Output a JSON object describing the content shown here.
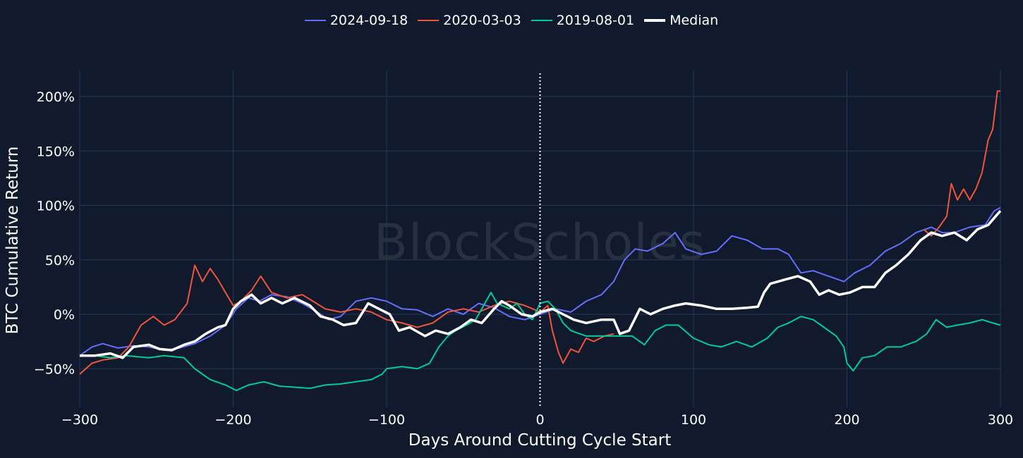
{
  "colors": {
    "background": "#101a2c",
    "grid": "#26365a",
    "text": "#ffffff",
    "cycle_line": "#ffffff"
  },
  "watermark": "BlockScholes",
  "chart_data": {
    "type": "line",
    "xlabel": "Days Around Cutting Cycle Start",
    "ylabel": "BTC Cumulative Return",
    "xlim": [
      -300,
      300
    ],
    "ylim": [
      -0.8,
      2.2
    ],
    "x_ticks": [
      -300,
      -200,
      -100,
      0,
      100,
      200,
      300
    ],
    "x_tick_labels": [
      "−300",
      "−200",
      "−100",
      "0",
      "100",
      "200",
      "300"
    ],
    "y_ticks": [
      -0.5,
      0,
      0.5,
      1,
      1.5,
      2
    ],
    "y_tick_labels": [
      "−50%",
      "0%",
      "50%",
      "100%",
      "150%",
      "200%"
    ],
    "grid": true,
    "legend_position": "top-center",
    "vertical_marker_x": 0,
    "series": [
      {
        "name": "2024-09-18",
        "color": "#636efa",
        "width": 2,
        "points": [
          [
            -300,
            -0.38
          ],
          [
            -292,
            -0.3
          ],
          [
            -285,
            -0.27
          ],
          [
            -275,
            -0.31
          ],
          [
            -265,
            -0.29
          ],
          [
            -255,
            -0.3
          ],
          [
            -245,
            -0.33
          ],
          [
            -235,
            -0.31
          ],
          [
            -225,
            -0.27
          ],
          [
            -215,
            -0.2
          ],
          [
            -205,
            -0.1
          ],
          [
            -198,
            0.05
          ],
          [
            -190,
            0.15
          ],
          [
            -183,
            0.12
          ],
          [
            -175,
            0.18
          ],
          [
            -165,
            0.16
          ],
          [
            -155,
            0.1
          ],
          [
            -145,
            0.02
          ],
          [
            -138,
            -0.05
          ],
          [
            -130,
            -0.02
          ],
          [
            -120,
            0.12
          ],
          [
            -110,
            0.15
          ],
          [
            -100,
            0.12
          ],
          [
            -90,
            0.05
          ],
          [
            -80,
            0.04
          ],
          [
            -70,
            -0.02
          ],
          [
            -60,
            0.05
          ],
          [
            -50,
            0.0
          ],
          [
            -40,
            0.1
          ],
          [
            -30,
            0.06
          ],
          [
            -20,
            -0.02
          ],
          [
            -10,
            -0.05
          ],
          [
            0,
            0.0
          ],
          [
            10,
            0.05
          ],
          [
            20,
            0.02
          ],
          [
            30,
            0.12
          ],
          [
            40,
            0.18
          ],
          [
            48,
            0.3
          ],
          [
            55,
            0.5
          ],
          [
            62,
            0.6
          ],
          [
            70,
            0.58
          ],
          [
            80,
            0.65
          ],
          [
            88,
            0.75
          ],
          [
            95,
            0.6
          ],
          [
            105,
            0.55
          ],
          [
            115,
            0.58
          ],
          [
            125,
            0.72
          ],
          [
            135,
            0.68
          ],
          [
            145,
            0.6
          ],
          [
            155,
            0.6
          ],
          [
            162,
            0.55
          ],
          [
            170,
            0.38
          ],
          [
            178,
            0.4
          ],
          [
            188,
            0.35
          ],
          [
            198,
            0.3
          ],
          [
            205,
            0.38
          ],
          [
            215,
            0.45
          ],
          [
            225,
            0.58
          ],
          [
            235,
            0.65
          ],
          [
            245,
            0.75
          ],
          [
            255,
            0.8
          ],
          [
            262,
            0.75
          ],
          [
            270,
            0.75
          ],
          [
            280,
            0.8
          ],
          [
            290,
            0.82
          ],
          [
            296,
            0.95
          ],
          [
            300,
            0.98
          ]
        ]
      },
      {
        "name": "2020-03-03",
        "color": "#ef553b",
        "width": 2,
        "points": [
          [
            -300,
            -0.55
          ],
          [
            -292,
            -0.45
          ],
          [
            -285,
            -0.42
          ],
          [
            -275,
            -0.4
          ],
          [
            -268,
            -0.3
          ],
          [
            -260,
            -0.1
          ],
          [
            -252,
            -0.02
          ],
          [
            -245,
            -0.1
          ],
          [
            -238,
            -0.05
          ],
          [
            -230,
            0.1
          ],
          [
            -225,
            0.45
          ],
          [
            -220,
            0.3
          ],
          [
            -215,
            0.42
          ],
          [
            -210,
            0.32
          ],
          [
            -205,
            0.2
          ],
          [
            -200,
            0.08
          ],
          [
            -195,
            0.12
          ],
          [
            -188,
            0.22
          ],
          [
            -182,
            0.35
          ],
          [
            -175,
            0.2
          ],
          [
            -165,
            0.15
          ],
          [
            -155,
            0.18
          ],
          [
            -148,
            0.12
          ],
          [
            -140,
            0.05
          ],
          [
            -130,
            0.02
          ],
          [
            -120,
            0.05
          ],
          [
            -110,
            0.02
          ],
          [
            -100,
            -0.05
          ],
          [
            -90,
            -0.08
          ],
          [
            -80,
            -0.12
          ],
          [
            -70,
            -0.08
          ],
          [
            -60,
            0.02
          ],
          [
            -50,
            0.05
          ],
          [
            -40,
            0.02
          ],
          [
            -30,
            0.08
          ],
          [
            -20,
            0.12
          ],
          [
            -10,
            0.08
          ],
          [
            0,
            0.02
          ],
          [
            5,
            0.08
          ],
          [
            8,
            -0.15
          ],
          [
            12,
            -0.35
          ],
          [
            15,
            -0.45
          ],
          [
            20,
            -0.32
          ],
          [
            25,
            -0.35
          ],
          [
            30,
            -0.22
          ],
          [
            35,
            -0.25
          ],
          [
            42,
            -0.2
          ],
          [
            48,
            -0.18
          ]
        ],
        "points_late": [
          [
            250,
            0.78
          ],
          [
            255,
            0.72
          ],
          [
            260,
            0.8
          ],
          [
            265,
            0.9
          ],
          [
            268,
            1.2
          ],
          [
            272,
            1.05
          ],
          [
            276,
            1.15
          ],
          [
            280,
            1.05
          ],
          [
            284,
            1.15
          ],
          [
            288,
            1.3
          ],
          [
            292,
            1.6
          ],
          [
            295,
            1.7
          ],
          [
            298,
            2.05
          ],
          [
            300,
            2.05
          ]
        ]
      },
      {
        "name": "2019-08-01",
        "color": "#00cc96",
        "width": 2,
        "points": [
          [
            -300,
            -0.38
          ],
          [
            -290,
            -0.38
          ],
          [
            -280,
            -0.4
          ],
          [
            -270,
            -0.38
          ],
          [
            -255,
            -0.4
          ],
          [
            -245,
            -0.38
          ],
          [
            -232,
            -0.4
          ],
          [
            -225,
            -0.5
          ],
          [
            -215,
            -0.6
          ],
          [
            -205,
            -0.65
          ],
          [
            -198,
            -0.7
          ],
          [
            -190,
            -0.65
          ],
          [
            -180,
            -0.62
          ],
          [
            -170,
            -0.66
          ],
          [
            -160,
            -0.67
          ],
          [
            -150,
            -0.68
          ],
          [
            -140,
            -0.65
          ],
          [
            -130,
            -0.64
          ],
          [
            -120,
            -0.62
          ],
          [
            -110,
            -0.6
          ],
          [
            -103,
            -0.55
          ],
          [
            -100,
            -0.5
          ],
          [
            -90,
            -0.48
          ],
          [
            -80,
            -0.5
          ],
          [
            -72,
            -0.45
          ],
          [
            -66,
            -0.3
          ],
          [
            -60,
            -0.2
          ],
          [
            -55,
            -0.15
          ],
          [
            -48,
            -0.1
          ],
          [
            -42,
            -0.05
          ],
          [
            -38,
            0.05
          ],
          [
            -32,
            0.2
          ],
          [
            -28,
            0.1
          ],
          [
            -20,
            0.05
          ],
          [
            -15,
            0.1
          ],
          [
            -10,
            0.0
          ],
          [
            -5,
            -0.05
          ],
          [
            0,
            0.1
          ],
          [
            5,
            0.12
          ],
          [
            10,
            0.05
          ],
          [
            15,
            -0.08
          ],
          [
            20,
            -0.15
          ],
          [
            30,
            -0.2
          ],
          [
            40,
            -0.2
          ],
          [
            50,
            -0.2
          ],
          [
            60,
            -0.2
          ],
          [
            68,
            -0.28
          ],
          [
            75,
            -0.15
          ],
          [
            82,
            -0.1
          ],
          [
            90,
            -0.1
          ],
          [
            100,
            -0.22
          ],
          [
            110,
            -0.28
          ],
          [
            118,
            -0.3
          ],
          [
            128,
            -0.25
          ],
          [
            138,
            -0.3
          ],
          [
            148,
            -0.22
          ],
          [
            155,
            -0.12
          ],
          [
            162,
            -0.08
          ],
          [
            170,
            -0.02
          ],
          [
            178,
            -0.05
          ],
          [
            185,
            -0.12
          ],
          [
            193,
            -0.2
          ],
          [
            198,
            -0.3
          ],
          [
            200,
            -0.45
          ],
          [
            204,
            -0.52
          ],
          [
            210,
            -0.4
          ],
          [
            218,
            -0.38
          ],
          [
            226,
            -0.3
          ],
          [
            235,
            -0.3
          ],
          [
            245,
            -0.25
          ],
          [
            252,
            -0.18
          ],
          [
            258,
            -0.05
          ],
          [
            265,
            -0.12
          ],
          [
            272,
            -0.1
          ],
          [
            280,
            -0.08
          ],
          [
            288,
            -0.05
          ],
          [
            295,
            -0.08
          ],
          [
            300,
            -0.1
          ]
        ]
      },
      {
        "name": "Median",
        "color": "#ffffff",
        "width": 3.5,
        "points": [
          [
            -300,
            -0.38
          ],
          [
            -290,
            -0.38
          ],
          [
            -280,
            -0.36
          ],
          [
            -272,
            -0.4
          ],
          [
            -265,
            -0.3
          ],
          [
            -255,
            -0.28
          ],
          [
            -248,
            -0.32
          ],
          [
            -240,
            -0.33
          ],
          [
            -232,
            -0.28
          ],
          [
            -225,
            -0.25
          ],
          [
            -218,
            -0.18
          ],
          [
            -210,
            -0.12
          ],
          [
            -205,
            -0.1
          ],
          [
            -200,
            0.05
          ],
          [
            -195,
            0.12
          ],
          [
            -188,
            0.18
          ],
          [
            -182,
            0.1
          ],
          [
            -175,
            0.15
          ],
          [
            -168,
            0.1
          ],
          [
            -160,
            0.15
          ],
          [
            -150,
            0.08
          ],
          [
            -143,
            -0.02
          ],
          [
            -135,
            -0.05
          ],
          [
            -128,
            -0.1
          ],
          [
            -120,
            -0.08
          ],
          [
            -112,
            0.1
          ],
          [
            -105,
            0.05
          ],
          [
            -98,
            0.0
          ],
          [
            -92,
            -0.15
          ],
          [
            -85,
            -0.12
          ],
          [
            -75,
            -0.2
          ],
          [
            -68,
            -0.15
          ],
          [
            -60,
            -0.18
          ],
          [
            -52,
            -0.12
          ],
          [
            -45,
            -0.05
          ],
          [
            -38,
            -0.08
          ],
          [
            -30,
            0.05
          ],
          [
            -25,
            0.12
          ],
          [
            -20,
            0.08
          ],
          [
            -12,
            0.0
          ],
          [
            -5,
            -0.02
          ],
          [
            0,
            0.02
          ],
          [
            8,
            0.05
          ],
          [
            15,
            0.0
          ],
          [
            22,
            -0.05
          ],
          [
            30,
            -0.08
          ],
          [
            40,
            -0.05
          ],
          [
            48,
            -0.05
          ],
          [
            52,
            -0.18
          ],
          [
            58,
            -0.15
          ],
          [
            65,
            0.05
          ],
          [
            72,
            0.0
          ],
          [
            80,
            0.05
          ],
          [
            88,
            0.08
          ],
          [
            95,
            0.1
          ],
          [
            105,
            0.08
          ],
          [
            115,
            0.05
          ],
          [
            125,
            0.05
          ],
          [
            135,
            0.06
          ],
          [
            142,
            0.07
          ],
          [
            146,
            0.2
          ],
          [
            150,
            0.28
          ],
          [
            160,
            0.32
          ],
          [
            168,
            0.35
          ],
          [
            176,
            0.3
          ],
          [
            182,
            0.18
          ],
          [
            188,
            0.22
          ],
          [
            195,
            0.18
          ],
          [
            202,
            0.2
          ],
          [
            210,
            0.25
          ],
          [
            218,
            0.25
          ],
          [
            225,
            0.38
          ],
          [
            232,
            0.45
          ],
          [
            240,
            0.55
          ],
          [
            248,
            0.68
          ],
          [
            255,
            0.75
          ],
          [
            262,
            0.72
          ],
          [
            270,
            0.75
          ],
          [
            278,
            0.68
          ],
          [
            285,
            0.78
          ],
          [
            292,
            0.82
          ],
          [
            300,
            0.95
          ]
        ]
      }
    ]
  }
}
